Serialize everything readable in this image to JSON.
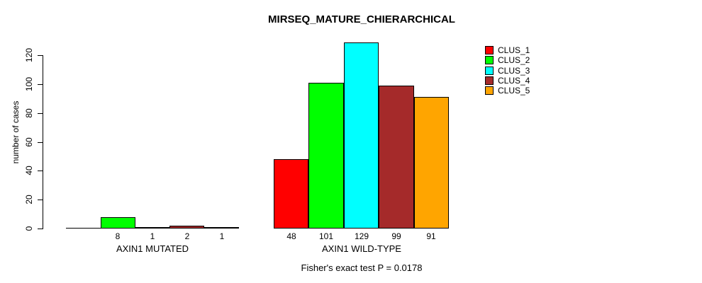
{
  "chart_data": {
    "type": "bar",
    "title": "MIRSEQ_MATURE_CHIERARCHICAL",
    "ylabel": "number of cases",
    "xlabel": "",
    "ylim": [
      0,
      120
    ],
    "yticks": [
      0,
      20,
      40,
      60,
      80,
      100,
      120
    ],
    "grid": false,
    "legend_position": "right",
    "categories": [
      "AXIN1 MUTATED",
      "AXIN1 WILD-TYPE"
    ],
    "series": [
      {
        "name": "CLUS_1",
        "color": "#FF0000",
        "values": [
          0,
          48
        ]
      },
      {
        "name": "CLUS_2",
        "color": "#00FF00",
        "values": [
          8,
          101
        ]
      },
      {
        "name": "CLUS_3",
        "color": "#00FFFF",
        "values": [
          1,
          129
        ]
      },
      {
        "name": "CLUS_4",
        "color": "#A52A2A",
        "values": [
          2,
          99
        ]
      },
      {
        "name": "CLUS_5",
        "color": "#FFA500",
        "values": [
          1,
          91
        ]
      }
    ],
    "bar_labels": [
      [
        "",
        "8",
        "1",
        "2",
        "1"
      ],
      [
        "48",
        "101",
        "129",
        "99",
        "91"
      ]
    ],
    "annotation": "Fisher's exact test P = 0.0178"
  },
  "colors": {
    "background": "#FFFFFF",
    "axis": "#000000",
    "text": "#000000"
  }
}
